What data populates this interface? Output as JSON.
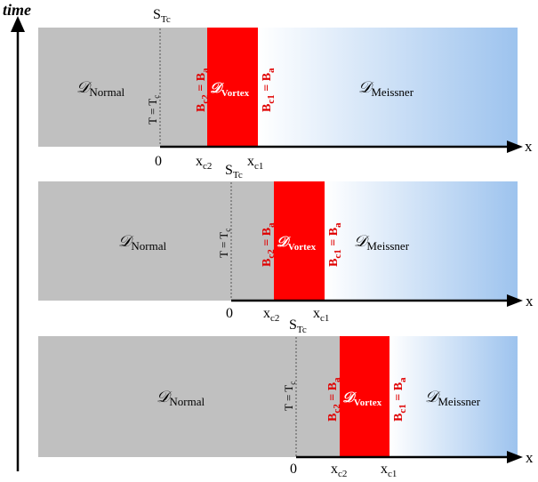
{
  "time_axis": {
    "label": "time"
  },
  "x_axis_label": "x",
  "region_glyph": "𝒟",
  "panels": [
    {
      "s_label": "S",
      "s_sub": "Tc",
      "t_label": "T = T",
      "t_sub": "c",
      "bc2_label": "B",
      "bc2_sub": "c2",
      "bc2_rhs": " = B",
      "bc2_rhs_sub": "a",
      "bc1_label": "B",
      "bc1_sub": "c1",
      "bc1_rhs": " = B",
      "bc1_rhs_sub": "a",
      "normal_sub": "Normal",
      "vortex_sub": "Vortex",
      "meissner_sub": "Meissner",
      "tick_zero": "0",
      "tick_xc2": "x",
      "tick_xc2_sub": "c2",
      "tick_xc1": "x",
      "tick_xc1_sub": "c1"
    },
    {
      "s_label": "S",
      "s_sub": "Tc",
      "t_label": "T = T",
      "t_sub": "c",
      "bc2_label": "B",
      "bc2_sub": "c2",
      "bc2_rhs": " = B",
      "bc2_rhs_sub": "a",
      "bc1_label": "B",
      "bc1_sub": "c1",
      "bc1_rhs": " = B",
      "bc1_rhs_sub": "a",
      "normal_sub": "Normal",
      "vortex_sub": "Vortex",
      "meissner_sub": "Meissner",
      "tick_zero": "0",
      "tick_xc2": "x",
      "tick_xc2_sub": "c2",
      "tick_xc1": "x",
      "tick_xc1_sub": "c1"
    },
    {
      "s_label": "S",
      "s_sub": "Tc",
      "t_label": "T = T",
      "t_sub": "c",
      "bc2_label": "B",
      "bc2_sub": "c2",
      "bc2_rhs": " = B",
      "bc2_rhs_sub": "a",
      "bc1_label": "B",
      "bc1_sub": "c1",
      "bc1_rhs": " = B",
      "bc1_rhs_sub": "a",
      "normal_sub": "Normal",
      "vortex_sub": "Vortex",
      "meissner_sub": "Meissner",
      "tick_zero": "0",
      "tick_xc2": "x",
      "tick_xc2_sub": "c2",
      "tick_xc1": "x",
      "tick_xc1_sub": "c1"
    }
  ],
  "colors": {
    "normal": "#c0c0c0",
    "vortex": "#ff0000",
    "meissner_start": "#ffffff",
    "meissner_end": "#9dc3ee",
    "label_red": "#e00000"
  }
}
